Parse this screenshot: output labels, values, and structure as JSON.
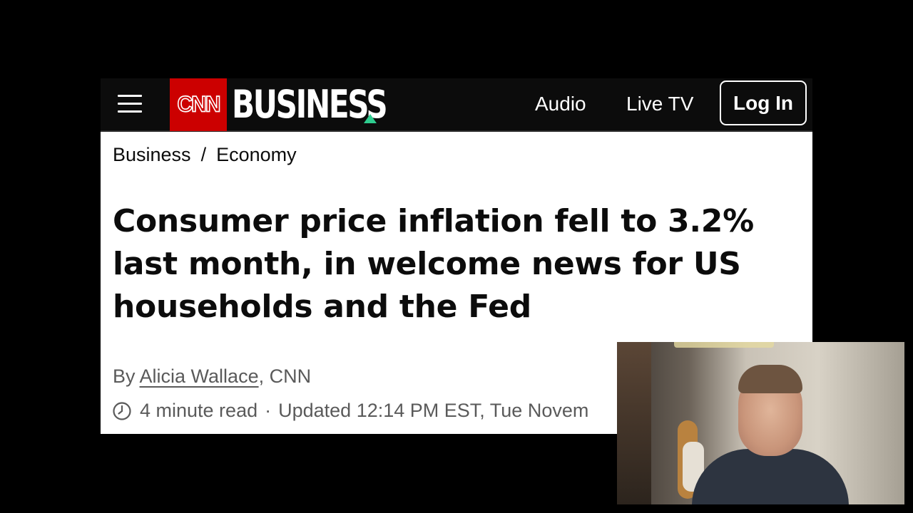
{
  "header": {
    "logo_cnn": "CNN",
    "logo_section": "BUSINESS",
    "nav": [
      {
        "label": "Audio"
      },
      {
        "label": "Live TV"
      }
    ],
    "login_label": "Log In",
    "colors": {
      "background": "#0c0c0c",
      "cnn_red": "#cc0000",
      "accent_triangle": "#2ecc8f"
    }
  },
  "breadcrumb": {
    "items": [
      "Business",
      "Economy"
    ],
    "separator": "/"
  },
  "article": {
    "headline": "Consumer price inflation fell to 3.2% last month, in welcome news for US households and the Fed",
    "byline_prefix": "By ",
    "author": "Alicia Wallace",
    "byline_suffix": ", CNN",
    "read_time": "4 minute read",
    "meta_separator": "·",
    "updated": "Updated 12:14 PM EST, Tue Novem"
  },
  "icons": {
    "menu": "hamburger-menu-icon",
    "clock": "clock-icon",
    "triangle": "triangle-icon"
  }
}
